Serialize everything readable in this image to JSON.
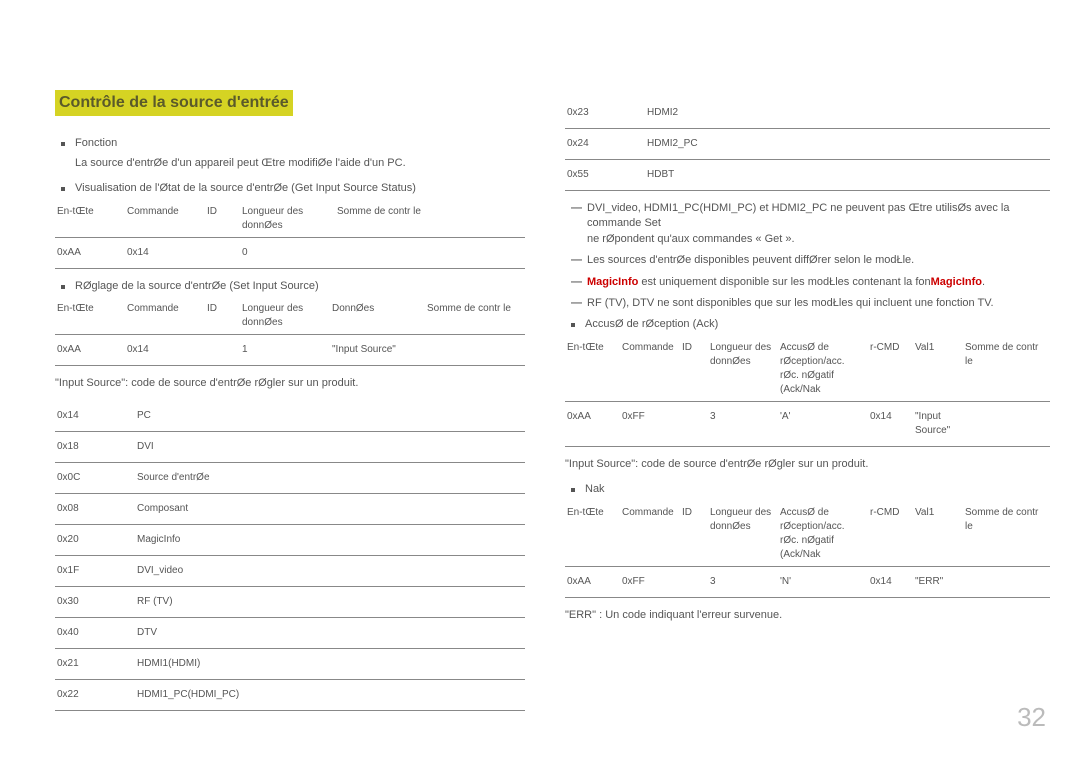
{
  "left": {
    "title": "Contrôle de la source d'entrée",
    "bullets": {
      "fonction": "Fonction",
      "fonction_desc": "La source d'entrØe d'un appareil peut Œtre modifiØe   l'aide d'un PC.",
      "visualisation": "Visualisation de l'Øtat de la source d'entrØe (Get Input Source Status)",
      "reglage": "RØglage de la source d'entrØe (Set Input Source)"
    },
    "t1": {
      "headers": [
        "En-tŒte",
        "Commande",
        "ID",
        "Longueur des donnØes",
        "Somme de contr le"
      ],
      "widths": [
        "70px",
        "80px",
        "35px",
        "95px",
        "auto"
      ],
      "row": [
        "0xAA",
        "0x14",
        "",
        "0",
        ""
      ]
    },
    "t2": {
      "headers": [
        "En-tŒte",
        "Commande",
        "ID",
        "Longueur des donnØes",
        "DonnØes",
        "Somme de contr le"
      ],
      "widths": [
        "70px",
        "80px",
        "35px",
        "90px",
        "95px",
        "auto"
      ],
      "row": [
        "0xAA",
        "0x14",
        "",
        "1",
        "\"Input Source\"",
        ""
      ]
    },
    "note_input_source": "\"Input Source\": code de source d'entrØe   rØgler sur un produit.",
    "source_codes": [
      [
        "0x14",
        "PC"
      ],
      [
        "0x18",
        "DVI"
      ],
      [
        "0x0C",
        "Source d'entrØe"
      ],
      [
        "0x08",
        "Composant"
      ],
      [
        "0x20",
        "MagicInfo"
      ],
      [
        "0x1F",
        "DVI_video"
      ],
      [
        "0x30",
        "RF (TV)"
      ],
      [
        "0x40",
        "DTV"
      ],
      [
        "0x21",
        "HDMI1(HDMI)"
      ],
      [
        "0x22",
        "HDMI1_PC(HDMI_PC)"
      ]
    ]
  },
  "right": {
    "source_codes_cont": [
      [
        "0x23",
        "HDMI2"
      ],
      [
        "0x24",
        "HDMI2_PC"
      ],
      [
        "0x55",
        "HDBT"
      ]
    ],
    "dash1a": "DVI_video, HDMI1_PC(HDMI_PC) et HDMI2_PC ne peuvent pas Œtre utilisØs avec la commande Set",
    "dash1b": "ne rØpondent qu'aux commandes « Get ».",
    "dash2": "Les sources d'entrØe disponibles peuvent diffØrer selon le modŁle.",
    "dash3_pre": "MagicInfo",
    "dash3_mid": " est uniquement disponible sur les modŁles contenant la fon",
    "dash3_red2": "MagicInfo",
    "dash3_end": ".",
    "dash4": "RF (TV), DTV ne sont disponibles que sur les modŁles qui incluent une fonction TV.",
    "bullet_ack": "AccusØ de rØception (Ack)",
    "ack_table": {
      "headers": [
        "En-tŒte",
        "Commande",
        "ID",
        "Longueur des donnØes",
        "AccusØ de rØception/acc. rØc. nØgatif (Ack/Nak",
        "r-CMD",
        "Val1",
        "Somme de contr le"
      ],
      "widths": [
        "55px",
        "60px",
        "28px",
        "70px",
        "90px",
        "45px",
        "50px",
        "auto"
      ],
      "row": [
        "0xAA",
        "0xFF",
        "",
        "3",
        "'A'",
        "0x14",
        "\"Input Source\"",
        ""
      ]
    },
    "note_input_source2": "\"Input Source\": code de source d'entrØe   rØgler sur un produit.",
    "bullet_nak": "Nak",
    "nak_table": {
      "headers": [
        "En-tŒte",
        "Commande",
        "ID",
        "Longueur des donnØes",
        "AccusØ de rØception/acc. rØc. nØgatif (Ack/Nak",
        "r-CMD",
        "Val1",
        "Somme de contr le"
      ],
      "widths": [
        "55px",
        "60px",
        "28px",
        "70px",
        "90px",
        "45px",
        "50px",
        "auto"
      ],
      "row": [
        "0xAA",
        "0xFF",
        "",
        "3",
        "'N'",
        "0x14",
        "\"ERR\"",
        ""
      ]
    },
    "err_note": "\"ERR\" : Un code indiquant l'erreur survenue."
  },
  "page_number": "32"
}
